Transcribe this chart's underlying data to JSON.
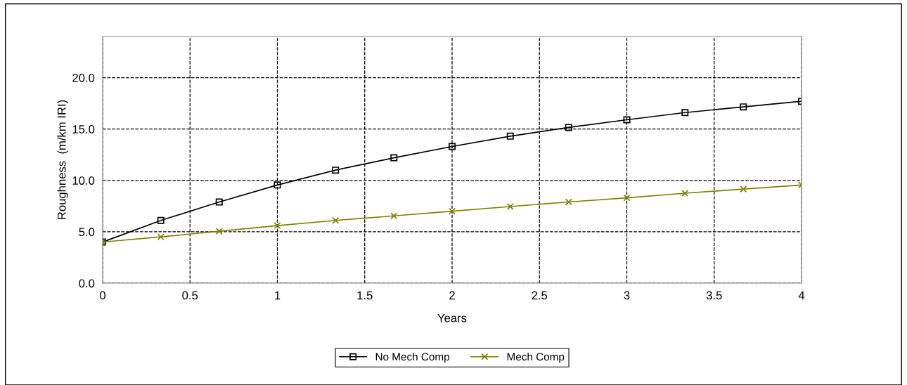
{
  "chart_data": {
    "type": "line",
    "xlabel": "Years",
    "ylabel": "Roughness  (m/km IRI)",
    "x": [
      0,
      0.333,
      0.667,
      1,
      1.333,
      1.667,
      2,
      2.333,
      2.667,
      3,
      3.333,
      3.667,
      4
    ],
    "series": [
      {
        "name": "No Mech Comp",
        "color": "#000000",
        "marker": "square",
        "values": [
          4.0,
          6.1,
          7.9,
          9.55,
          11.0,
          12.2,
          13.3,
          14.3,
          15.15,
          15.9,
          16.6,
          17.15,
          17.7
        ]
      },
      {
        "name": "Mech Comp",
        "color": "#808000",
        "marker": "cross",
        "values": [
          4.0,
          4.5,
          5.05,
          5.6,
          6.1,
          6.55,
          7.0,
          7.45,
          7.9,
          8.3,
          8.75,
          9.15,
          9.55
        ]
      }
    ],
    "xlim": [
      0,
      4
    ],
    "xticks": [
      0,
      0.5,
      1,
      1.5,
      2,
      2.5,
      3,
      3.5,
      4
    ],
    "ylim": [
      0,
      24
    ],
    "yticks": [
      {
        "value": 0,
        "label": "0.0"
      },
      {
        "value": 5,
        "label": "5.0"
      },
      {
        "value": 10,
        "label": "10.0"
      },
      {
        "value": 15,
        "label": "15.0"
      },
      {
        "value": 20,
        "label": "20.0"
      }
    ],
    "grid": true,
    "legend": "bottom",
    "line_style": "solid"
  }
}
